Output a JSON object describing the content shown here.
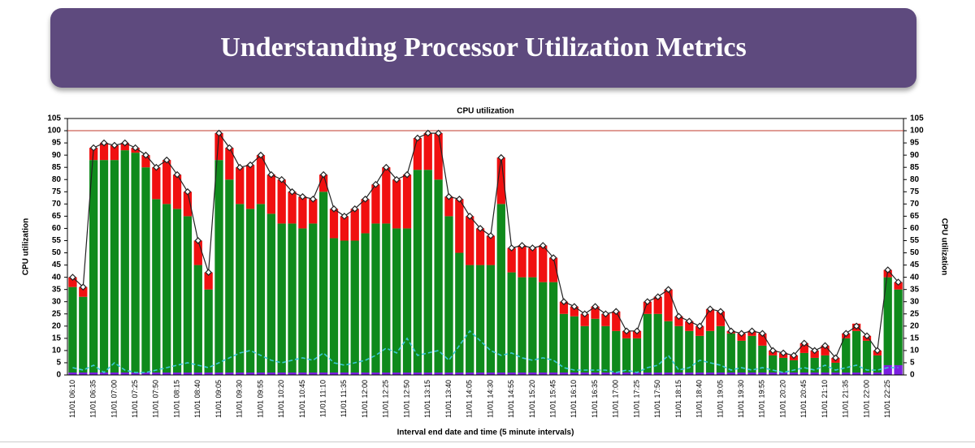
{
  "header": {
    "title": "Understanding Processor Utilization Metrics"
  },
  "chart_data": {
    "type": "bar",
    "stacked": true,
    "title": "CPU utilization",
    "x_label": "Interval end date and time (5 minute intervals)",
    "y_label": "CPU utilization",
    "y2_label": "CPU utilization",
    "ylim": [
      0,
      105
    ],
    "yticks": [
      0,
      5,
      10,
      15,
      20,
      25,
      30,
      35,
      40,
      45,
      50,
      55,
      60,
      65,
      70,
      75,
      80,
      85,
      90,
      95,
      100,
      105
    ],
    "y2lim": [
      0,
      105
    ],
    "y2ticks": [
      0,
      5,
      10,
      15,
      20,
      25,
      30,
      35,
      40,
      45,
      50,
      55,
      60,
      65,
      70,
      75,
      80,
      85,
      90,
      95,
      100,
      105
    ],
    "reference_line": {
      "value": 100,
      "color": "#c0392b"
    },
    "categories": [
      "11/01 06:10",
      null,
      "11/01 06:35",
      null,
      "11/01 07:00",
      null,
      "11/01 07:25",
      null,
      "11/01 07:50",
      null,
      "11/01 08:15",
      null,
      "11/01 08:40",
      null,
      "11/01 09:05",
      null,
      "11/01 09:30",
      null,
      "11/01 09:55",
      null,
      "11/01 10:20",
      null,
      "11/01 10:45",
      null,
      "11/01 11:10",
      null,
      "11/01 11:35",
      null,
      "11/01 12:00",
      null,
      "11/01 12:25",
      null,
      "11/01 12:50",
      null,
      "11/01 13:15",
      null,
      "11/01 13:40",
      null,
      "11/01 14:05",
      null,
      "11/01 14:30",
      null,
      "11/01 14:55",
      null,
      "11/01 15:20",
      null,
      "11/01 15:45",
      null,
      "11/01 16:10",
      null,
      "11/01 16:35",
      null,
      "11/01 17:00",
      null,
      "11/01 17:25",
      null,
      "11/01 17:50",
      null,
      "11/01 18:15",
      null,
      "11/01 18:40",
      null,
      "11/01 19:05",
      null,
      "11/01 19:30",
      null,
      "11/01 19:55",
      null,
      "11/01 20:20",
      null,
      "11/01 20:45",
      null,
      "11/01 21:10",
      null,
      "11/01 21:35",
      null,
      "11/01 22:00",
      null,
      "11/01 22:25",
      null
    ],
    "series": [
      {
        "type": "bar",
        "color": "#7b1fe0",
        "values": [
          1,
          1,
          1,
          1,
          1,
          1,
          1,
          1,
          1,
          1,
          1,
          1,
          1,
          1,
          1,
          1,
          1,
          1,
          1,
          1,
          1,
          1,
          1,
          1,
          1,
          1,
          1,
          1,
          1,
          1,
          1,
          1,
          1,
          1,
          1,
          1,
          1,
          1,
          1,
          1,
          1,
          1,
          1,
          1,
          1,
          1,
          1,
          1,
          1,
          1,
          1,
          1,
          1,
          1,
          1,
          1,
          1,
          1,
          1,
          1,
          1,
          1,
          1,
          1,
          1,
          1,
          1,
          1,
          1,
          1,
          1,
          1,
          1,
          1,
          1,
          1,
          1,
          1,
          4,
          4
        ]
      },
      {
        "type": "bar",
        "color": "#0f8a1c",
        "values": [
          35,
          31,
          87,
          87,
          87,
          91,
          90,
          84,
          71,
          69,
          67,
          64,
          44,
          34,
          87,
          79,
          69,
          67,
          69,
          65,
          61,
          61,
          59,
          61,
          74,
          55,
          54,
          54,
          57,
          61,
          61,
          59,
          59,
          83,
          83,
          79,
          64,
          49,
          44,
          44,
          44,
          69,
          41,
          39,
          39,
          37,
          37,
          24,
          23,
          19,
          22,
          19,
          17,
          14,
          14,
          24,
          24,
          21,
          19,
          17,
          15,
          17,
          19,
          16,
          13,
          15,
          11,
          7,
          6,
          5,
          8,
          6,
          7,
          4,
          14,
          17,
          13,
          7,
          36,
          31
        ]
      },
      {
        "type": "bar",
        "color": "#f01010",
        "values": [
          4,
          4,
          5,
          7,
          6,
          3,
          2,
          5,
          13,
          18,
          14,
          10,
          10,
          7,
          11,
          13,
          15,
          18,
          20,
          16,
          18,
          13,
          13,
          10,
          7,
          12,
          10,
          13,
          14,
          16,
          23,
          20,
          22,
          13,
          15,
          19,
          8,
          22,
          20,
          15,
          12,
          19,
          10,
          13,
          12,
          15,
          10,
          5,
          4,
          5,
          5,
          5,
          8,
          3,
          3,
          5,
          7,
          13,
          4,
          4,
          4,
          9,
          6,
          1,
          3,
          2,
          5,
          2,
          2,
          2,
          4,
          3,
          4,
          2,
          2,
          3,
          2,
          2,
          3,
          3
        ]
      },
      {
        "type": "line",
        "color": "#222222",
        "marker": "diamond",
        "dashed": false,
        "values": [
          40,
          36,
          93,
          95,
          94,
          95,
          93,
          90,
          85,
          88,
          82,
          75,
          55,
          42,
          99,
          93,
          85,
          86,
          90,
          82,
          80,
          75,
          73,
          72,
          82,
          68,
          65,
          68,
          72,
          78,
          85,
          80,
          82,
          97,
          99,
          99,
          73,
          72,
          65,
          60,
          57,
          89,
          52,
          53,
          52,
          53,
          48,
          30,
          28,
          25,
          28,
          25,
          26,
          18,
          18,
          30,
          32,
          35,
          24,
          22,
          20,
          27,
          26,
          18,
          17,
          18,
          17,
          10,
          9,
          8,
          13,
          10,
          12,
          7,
          17,
          20,
          16,
          10,
          43,
          38
        ]
      },
      {
        "type": "line",
        "color": "#3cc8d8",
        "dashed": true,
        "values": [
          3,
          2,
          4,
          1,
          5,
          2,
          1,
          1,
          2,
          3,
          4,
          5,
          4,
          3,
          5,
          7,
          9,
          10,
          8,
          6,
          5,
          6,
          7,
          6,
          9,
          5,
          4,
          5,
          6,
          8,
          11,
          9,
          15,
          8,
          9,
          10,
          6,
          12,
          18,
          14,
          10,
          8,
          9,
          7,
          6,
          7,
          6,
          3,
          2,
          2,
          2,
          2,
          1,
          2,
          1,
          3,
          4,
          8,
          2,
          3,
          6,
          5,
          4,
          2,
          3,
          2,
          3,
          2,
          1,
          2,
          3,
          2,
          4,
          2,
          3,
          4,
          2,
          2,
          3,
          3
        ]
      }
    ]
  }
}
